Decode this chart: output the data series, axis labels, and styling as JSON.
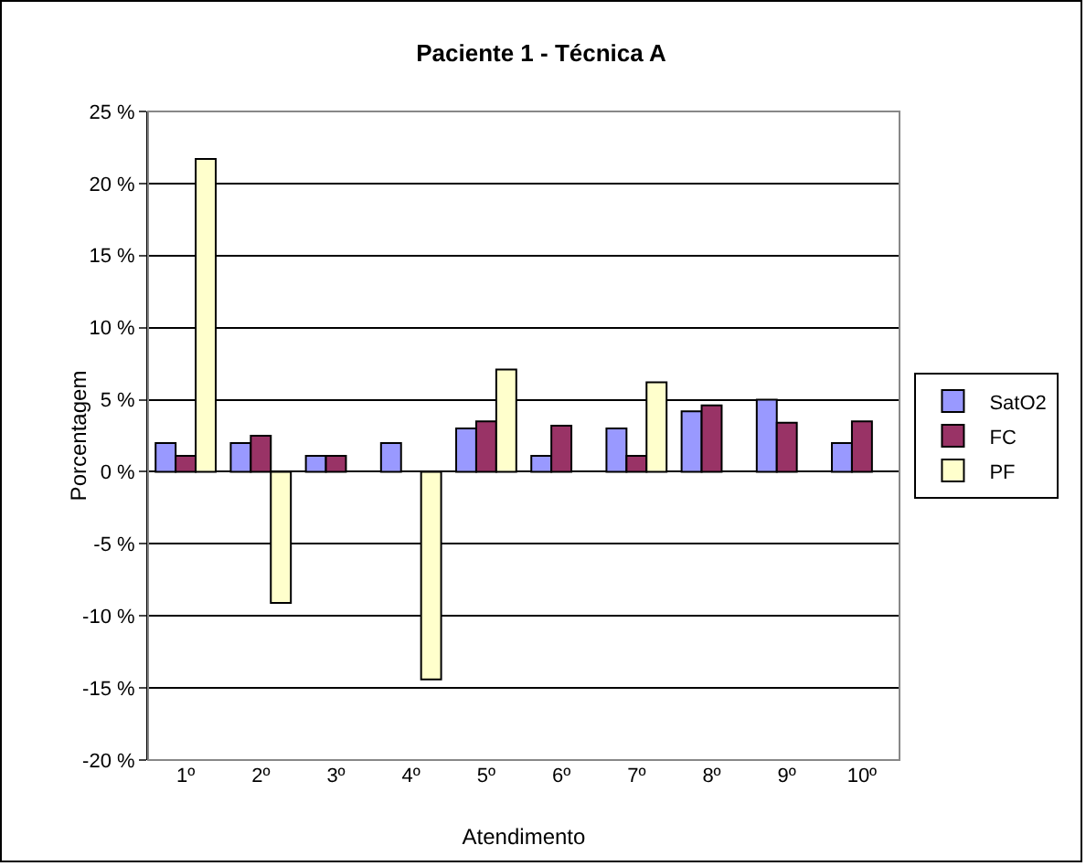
{
  "chart_data": {
    "type": "bar",
    "title": "Paciente 1 - Técnica A",
    "xlabel": "Atendimento",
    "ylabel": "Porcentagem",
    "categories": [
      "1º",
      "2º",
      "3º",
      "4º",
      "5º",
      "6º",
      "7º",
      "8º",
      "9º",
      "10º"
    ],
    "series": [
      {
        "name": "SatO2",
        "color": "#9999ff",
        "values": [
          2,
          2,
          1.1,
          2,
          3,
          1.1,
          3,
          4.2,
          5,
          2
        ]
      },
      {
        "name": "FC",
        "color": "#993366",
        "values": [
          1.1,
          2.5,
          1.1,
          null,
          3.5,
          3.2,
          1.1,
          4.6,
          3.4,
          3.5
        ]
      },
      {
        "name": "PF",
        "color": "#ffffcc",
        "values": [
          21.7,
          -9.1,
          null,
          -14.4,
          7.1,
          null,
          6.2,
          null,
          null,
          null
        ]
      }
    ],
    "ylim": [
      -20,
      25
    ],
    "yticks": [
      {
        "value": -20,
        "label": "-20 %"
      },
      {
        "value": -15,
        "label": "-15 %"
      },
      {
        "value": -10,
        "label": "-10 %"
      },
      {
        "value": -5,
        "label": "-5 %"
      },
      {
        "value": 0,
        "label": "0 %"
      },
      {
        "value": 5,
        "label": "5 %"
      },
      {
        "value": 10,
        "label": "10 %"
      },
      {
        "value": 15,
        "label": "15 %"
      },
      {
        "value": 20,
        "label": "20 %"
      },
      {
        "value": 25,
        "label": "25 %"
      }
    ],
    "grid": "y",
    "legend": "right"
  }
}
